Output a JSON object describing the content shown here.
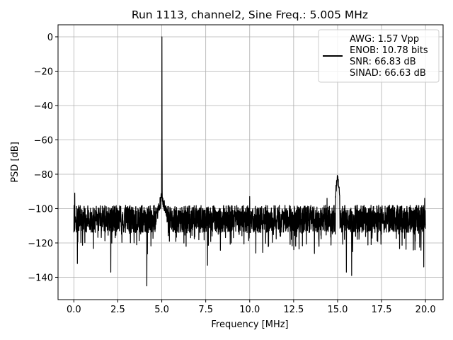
{
  "chart_data": {
    "type": "line",
    "title": "Run 1113, channel2, Sine Freq.: 5.005 MHz",
    "xlabel": "Frequency [MHz]",
    "ylabel": "PSD [dB]",
    "xlim": [
      -0.9,
      21.0
    ],
    "ylim": [
      -153,
      7
    ],
    "x_ticks": [
      0.0,
      2.5,
      5.0,
      7.5,
      10.0,
      12.5,
      15.0,
      17.5,
      20.0
    ],
    "x_tick_labels": [
      "0.0",
      "2.5",
      "5.0",
      "7.5",
      "10.0",
      "12.5",
      "15.0",
      "17.5",
      "20.0"
    ],
    "y_ticks": [
      0,
      -20,
      -40,
      -60,
      -80,
      -100,
      -120,
      -140
    ],
    "y_tick_labels": [
      "0",
      "−20",
      "−40",
      "−60",
      "−80",
      "−100",
      "−120",
      "−140"
    ],
    "grid": true,
    "legend_position": "top-right",
    "series": [
      {
        "name": "AWG: 1.57 Vpp\nENOB: 10.78 bits\nSNR: 66.83 dB\nSINAD: 66.63 dB",
        "legend_lines": [
          "AWG: 1.57 Vpp",
          "ENOB: 10.78 bits",
          "SNR: 66.83 dB",
          "SINAD: 66.63 dB"
        ],
        "color": "#000000",
        "noise_floor_db": -106,
        "fundamental": {
          "x": 5.005,
          "y": 0
        },
        "harmonic": {
          "x": 15.0,
          "y": -81
        },
        "dips": [
          {
            "x": 0.2,
            "y": -132
          },
          {
            "x": 2.1,
            "y": -137
          },
          {
            "x": 4.15,
            "y": -145
          },
          {
            "x": 7.6,
            "y": -133
          },
          {
            "x": 15.5,
            "y": -137
          },
          {
            "x": 15.8,
            "y": -139
          },
          {
            "x": 19.9,
            "y": -134
          }
        ],
        "spikes": [
          {
            "x": 0.05,
            "y": -91
          },
          {
            "x": 10.0,
            "y": -93
          },
          {
            "x": 14.4,
            "y": -94
          },
          {
            "x": 19.95,
            "y": -94
          }
        ]
      }
    ]
  }
}
